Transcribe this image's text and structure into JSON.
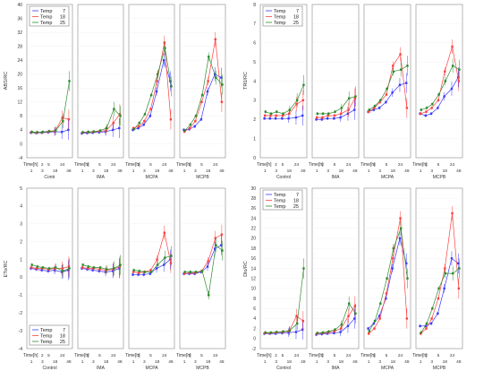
{
  "time_axis_label": "Time[h]",
  "time_ticks": [
    "1",
    "2",
    "3",
    "5",
    "18",
    "24",
    "48"
  ],
  "legend_prefix": "Temp",
  "temperatures": [
    "7",
    "18",
    "25"
  ],
  "series_colors": [
    "#3a3aff",
    "#ff4040",
    "#2e8b2e"
  ],
  "groups": [
    "Contr",
    "IMA",
    "MCPA",
    "MCPB"
  ],
  "chart_data": [
    {
      "type": "line",
      "panel": "ABS/RC",
      "ylabel": "ABS/RC",
      "ylim": [
        -4,
        40
      ],
      "yticks": [
        "-4",
        "0",
        "4",
        "8",
        "12",
        "16",
        "20",
        "24",
        "28",
        "32",
        "36",
        "40"
      ],
      "group_labels": [
        "Contr",
        "IMA",
        "MCPA",
        "MCPB"
      ],
      "x": [
        "1",
        "2",
        "3",
        "5",
        "18",
        "24",
        "48"
      ],
      "legend": {
        "position": "top-left",
        "entries": [
          "Temp 7",
          "Temp 18",
          "Temp 25"
        ]
      },
      "groups": [
        {
          "name": "Contr",
          "series": [
            {
              "name": "Temp 7",
              "values": [
                3.2,
                3.1,
                3.2,
                3.3,
                3.5,
                3.4,
                4.0
              ]
            },
            {
              "name": "Temp 18",
              "values": [
                3.3,
                3.2,
                3.3,
                3.5,
                3.6,
                7.5,
                7.0
              ]
            },
            {
              "name": "Temp 25",
              "values": [
                3.4,
                3.3,
                3.4,
                3.6,
                3.8,
                6.5,
                18.0
              ]
            }
          ]
        },
        {
          "name": "IMA",
          "series": [
            {
              "name": "Temp 7",
              "values": [
                3.0,
                3.1,
                3.2,
                3.3,
                3.5,
                4.0,
                4.5
              ]
            },
            {
              "name": "Temp 18",
              "values": [
                3.2,
                3.3,
                3.4,
                3.6,
                3.8,
                6.0,
                8.5
              ]
            },
            {
              "name": "Temp 25",
              "values": [
                3.3,
                3.4,
                3.5,
                3.8,
                4.5,
                10.0,
                8.0
              ]
            }
          ]
        },
        {
          "name": "MCPA",
          "series": [
            {
              "name": "Temp 7",
              "values": [
                4.0,
                4.5,
                5.5,
                8.0,
                15.0,
                24.0,
                18.0
              ]
            },
            {
              "name": "Temp 18",
              "values": [
                4.5,
                5.0,
                6.5,
                10.0,
                18.0,
                29.0,
                7.0
              ]
            },
            {
              "name": "Temp 25",
              "values": [
                4.2,
                6.0,
                8.5,
                14.0,
                20.0,
                27.5,
                16.5
              ]
            }
          ]
        },
        {
          "name": "MCPB",
          "series": [
            {
              "name": "Temp 7",
              "values": [
                4.0,
                4.2,
                5.0,
                7.0,
                15.0,
                20.0,
                19.0
              ]
            },
            {
              "name": "Temp 18",
              "values": [
                3.5,
                4.5,
                6.5,
                12.0,
                18.0,
                30.0,
                12.0
              ]
            },
            {
              "name": "Temp 25",
              "values": [
                3.8,
                5.5,
                8.0,
                14.0,
                25.0,
                19.0,
                17.0
              ]
            }
          ]
        }
      ]
    },
    {
      "type": "line",
      "panel": "TR0/RC",
      "ylabel": "TR0/RC",
      "ylim": [
        0,
        8
      ],
      "yticks": [
        "0",
        "1",
        "2",
        "3",
        "4",
        "5",
        "6",
        "7",
        "8"
      ],
      "group_labels": [
        "Control",
        "IMA",
        "MCPA",
        "MCPB"
      ],
      "x": [
        "1",
        "2",
        "3",
        "5",
        "18",
        "24",
        "48"
      ],
      "legend": {
        "position": "top-left",
        "entries": [
          "Temp 7",
          "Temp 18",
          "Temp 25"
        ]
      },
      "groups": [
        {
          "name": "Control",
          "series": [
            {
              "name": "Temp 7",
              "values": [
                2.05,
                2.05,
                2.05,
                2.05,
                2.05,
                2.1,
                2.2
              ]
            },
            {
              "name": "Temp 18",
              "values": [
                2.2,
                2.2,
                2.2,
                2.2,
                2.3,
                2.8,
                3.0
              ]
            },
            {
              "name": "Temp 25",
              "values": [
                2.4,
                2.3,
                2.4,
                2.3,
                2.5,
                3.0,
                3.8
              ]
            }
          ]
        },
        {
          "name": "IMA",
          "series": [
            {
              "name": "Temp 7",
              "values": [
                2.0,
                2.0,
                2.05,
                2.05,
                2.1,
                2.3,
                2.5
              ]
            },
            {
              "name": "Temp 18",
              "values": [
                2.1,
                2.1,
                2.2,
                2.2,
                2.3,
                2.5,
                3.1
              ]
            },
            {
              "name": "Temp 25",
              "values": [
                2.3,
                2.3,
                2.3,
                2.4,
                2.6,
                3.1,
                3.2
              ]
            }
          ]
        },
        {
          "name": "MCPA",
          "series": [
            {
              "name": "Temp 7",
              "values": [
                2.4,
                2.5,
                2.6,
                2.9,
                3.4,
                3.8,
                3.9
              ]
            },
            {
              "name": "Temp 18",
              "values": [
                2.4,
                2.6,
                2.9,
                3.3,
                4.8,
                5.4,
                2.6
              ]
            },
            {
              "name": "Temp 25",
              "values": [
                2.5,
                2.7,
                3.0,
                3.6,
                4.5,
                4.6,
                4.8
              ]
            }
          ]
        },
        {
          "name": "MCPB",
          "series": [
            {
              "name": "Temp 7",
              "values": [
                2.3,
                2.2,
                2.3,
                2.6,
                3.2,
                3.6,
                4.2
              ]
            },
            {
              "name": "Temp 18",
              "values": [
                2.3,
                2.4,
                2.6,
                3.0,
                4.5,
                5.8,
                4.0
              ]
            },
            {
              "name": "Temp 25",
              "values": [
                2.5,
                2.6,
                2.8,
                3.3,
                4.0,
                4.8,
                4.6
              ]
            }
          ]
        }
      ]
    },
    {
      "type": "line",
      "panel": "ETo/RC",
      "ylabel": "ETo/RC",
      "ylim": [
        -4,
        5
      ],
      "yticks": [
        "-4",
        "-3",
        "-2",
        "-1",
        "0",
        "1",
        "2",
        "3",
        "4",
        "5"
      ],
      "group_labels": [
        "Control",
        "IMA",
        "MCPA",
        "MCPB"
      ],
      "x": [
        "1",
        "2",
        "3",
        "5",
        "18",
        "24",
        "48"
      ],
      "legend": {
        "position": "bottom-left",
        "entries": [
          "Temp 7",
          "Temp 18",
          "Temp 25"
        ]
      },
      "groups": [
        {
          "name": "Control",
          "series": [
            {
              "name": "Temp 7",
              "values": [
                0.5,
                0.45,
                0.4,
                0.35,
                0.4,
                0.3,
                0.4
              ]
            },
            {
              "name": "Temp 18",
              "values": [
                0.55,
                0.5,
                0.5,
                0.45,
                0.5,
                0.5,
                0.6
              ]
            },
            {
              "name": "Temp 25",
              "values": [
                0.7,
                0.6,
                0.55,
                0.5,
                0.55,
                0.35,
                0.5
              ]
            }
          ]
        },
        {
          "name": "IMA",
          "series": [
            {
              "name": "Temp 7",
              "values": [
                0.5,
                0.45,
                0.4,
                0.35,
                0.3,
                0.35,
                0.5
              ]
            },
            {
              "name": "Temp 18",
              "values": [
                0.55,
                0.5,
                0.5,
                0.45,
                0.4,
                0.45,
                0.6
              ]
            },
            {
              "name": "Temp 25",
              "values": [
                0.7,
                0.6,
                0.55,
                0.55,
                0.45,
                0.5,
                0.7
              ]
            }
          ]
        },
        {
          "name": "MCPA",
          "series": [
            {
              "name": "Temp 7",
              "values": [
                0.15,
                0.15,
                0.15,
                0.2,
                0.5,
                0.7,
                1.0
              ]
            },
            {
              "name": "Temp 18",
              "values": [
                0.3,
                0.25,
                0.3,
                0.4,
                1.0,
                2.5,
                0.8
              ]
            },
            {
              "name": "Temp 25",
              "values": [
                0.4,
                0.35,
                0.3,
                0.3,
                0.7,
                1.1,
                1.2
              ]
            }
          ]
        },
        {
          "name": "MCPB",
          "series": [
            {
              "name": "Temp 7",
              "values": [
                0.2,
                0.2,
                0.2,
                0.3,
                0.6,
                1.6,
                1.8
              ]
            },
            {
              "name": "Temp 18",
              "values": [
                0.2,
                0.25,
                0.25,
                0.35,
                0.9,
                2.2,
                2.4
              ]
            },
            {
              "name": "Temp 25",
              "values": [
                0.3,
                0.3,
                0.3,
                0.35,
                -1.0,
                1.8,
                1.5
              ]
            }
          ]
        }
      ]
    },
    {
      "type": "line",
      "panel": "Dlo/RC",
      "ylabel": "Dlo/RC",
      "ylim": [
        -2,
        30
      ],
      "yticks": [
        "-2",
        "0",
        "2",
        "4",
        "6",
        "8",
        "10",
        "12",
        "14",
        "16",
        "18",
        "20",
        "22",
        "24",
        "26",
        "28",
        "30"
      ],
      "group_labels": [
        "Control",
        "IMA",
        "MCPA",
        "MCPB"
      ],
      "x": [
        "1",
        "2",
        "3",
        "5",
        "18",
        "24",
        "48"
      ],
      "legend": {
        "position": "top-left",
        "entries": [
          "Temp 7",
          "Temp 18",
          "Temp 25"
        ]
      },
      "groups": [
        {
          "name": "Control",
          "series": [
            {
              "name": "Temp 7",
              "values": [
                1.0,
                1.0,
                1.0,
                1.1,
                1.2,
                1.3,
                1.8
              ]
            },
            {
              "name": "Temp 18",
              "values": [
                1.1,
                1.1,
                1.2,
                1.3,
                1.5,
                4.5,
                3.5
              ]
            },
            {
              "name": "Temp 25",
              "values": [
                1.2,
                1.2,
                1.3,
                1.4,
                1.6,
                3.0,
                14.0
              ]
            }
          ]
        },
        {
          "name": "IMA",
          "series": [
            {
              "name": "Temp 7",
              "values": [
                0.8,
                0.9,
                1.0,
                1.1,
                1.3,
                2.5,
                4.0
              ]
            },
            {
              "name": "Temp 18",
              "values": [
                1.0,
                1.1,
                1.2,
                1.5,
                2.0,
                4.5,
                6.5
              ]
            },
            {
              "name": "Temp 25",
              "values": [
                1.1,
                1.2,
                1.4,
                1.8,
                2.8,
                7.0,
                5.0
              ]
            }
          ]
        },
        {
          "name": "MCPA",
          "series": [
            {
              "name": "Temp 7",
              "values": [
                2.0,
                3.0,
                4.5,
                8.0,
                14.0,
                20.0,
                15.0
              ]
            },
            {
              "name": "Temp 18",
              "values": [
                1.0,
                2.0,
                4.0,
                9.0,
                16.0,
                24.0,
                4.0
              ]
            },
            {
              "name": "Temp 25",
              "values": [
                1.5,
                3.5,
                7.0,
                12.0,
                18.0,
                22.0,
                12.0
              ]
            }
          ]
        },
        {
          "name": "MCPB",
          "series": [
            {
              "name": "Temp 7",
              "values": [
                2.5,
                2.5,
                3.0,
                5.0,
                10.0,
                16.0,
                15.0
              ]
            },
            {
              "name": "Temp 18",
              "values": [
                1.0,
                2.0,
                4.0,
                8.0,
                14.0,
                25.0,
                10.0
              ]
            },
            {
              "name": "Temp 25",
              "values": [
                1.2,
                3.0,
                6.0,
                10.0,
                13.0,
                13.0,
                14.0
              ]
            }
          ]
        }
      ]
    }
  ]
}
